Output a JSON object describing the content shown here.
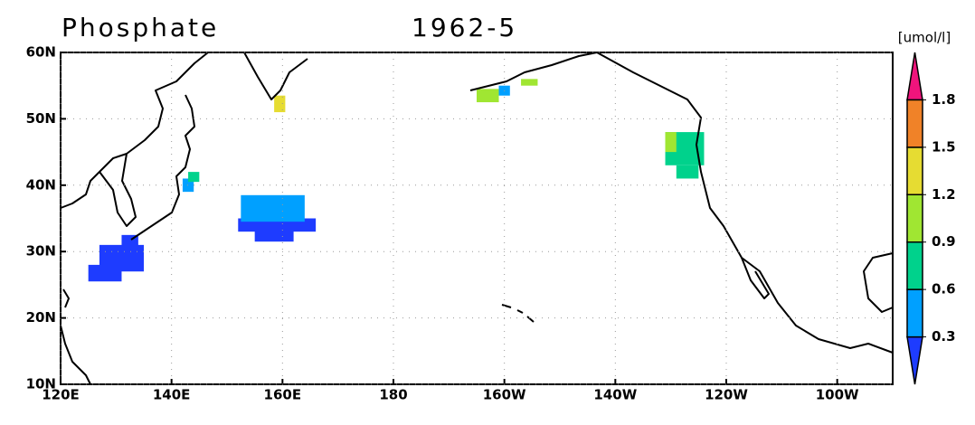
{
  "header": {
    "title": "Phosphate",
    "date": "1962-5"
  },
  "map": {
    "xlim": [
      120,
      270
    ],
    "ylim": [
      10,
      60
    ],
    "xticks": [
      {
        "value": 120,
        "label": "120E"
      },
      {
        "value": 140,
        "label": "140E"
      },
      {
        "value": 160,
        "label": "160E"
      },
      180,
      {
        "value": 200,
        "label": "160W"
      },
      {
        "value": 220,
        "label": "140W"
      },
      {
        "value": 240,
        "label": "120W"
      },
      {
        "value": 260,
        "label": "100W"
      }
    ],
    "yticks": [
      {
        "value": 10,
        "label": "10N"
      },
      {
        "value": 20,
        "label": "20N"
      },
      {
        "value": 30,
        "label": "30N"
      },
      {
        "value": 40,
        "label": "40N"
      },
      {
        "value": 50,
        "label": "50N"
      },
      {
        "value": 60,
        "label": "60N"
      }
    ],
    "grid": true,
    "patches": [
      {
        "lon": [
          125,
          131
        ],
        "lat": [
          25.5,
          28
        ],
        "value": 0.2
      },
      {
        "lon": [
          127,
          135
        ],
        "lat": [
          27,
          31
        ],
        "value": 0.2
      },
      {
        "lon": [
          131,
          134
        ],
        "lat": [
          30.5,
          32.5
        ],
        "value": 0.2
      },
      {
        "lon": [
          152,
          166
        ],
        "lat": [
          33,
          35
        ],
        "value": 0.2
      },
      {
        "lon": [
          155,
          162
        ],
        "lat": [
          31.5,
          33.5
        ],
        "value": 0.2
      },
      {
        "lon": [
          152.5,
          164
        ],
        "lat": [
          34.5,
          38.5
        ],
        "value": 0.45
      },
      {
        "lon": [
          142,
          144
        ],
        "lat": [
          39,
          41
        ],
        "value": 0.45
      },
      {
        "lon": [
          143,
          145
        ],
        "lat": [
          40.5,
          42
        ],
        "value": 0.75
      },
      {
        "lon": [
          158.5,
          160.5
        ],
        "lat": [
          51,
          53.5
        ],
        "value": 1.35
      },
      {
        "lon": [
          195,
          199
        ],
        "lat": [
          52.5,
          54.5
        ],
        "value": 1.05
      },
      {
        "lon": [
          199,
          201
        ],
        "lat": [
          53.5,
          55
        ],
        "value": 0.45
      },
      {
        "lon": [
          203,
          206
        ],
        "lat": [
          55,
          56
        ],
        "value": 1.05
      },
      {
        "lon": [
          229,
          236
        ],
        "lat": [
          43,
          48
        ],
        "value": 0.75
      },
      {
        "lon": [
          231,
          235
        ],
        "lat": [
          41,
          43
        ],
        "value": 0.75
      },
      {
        "lon": [
          229,
          231
        ],
        "lat": [
          45,
          48
        ],
        "value": 1.05
      }
    ]
  },
  "colorbar": {
    "unit": "[umol/l]",
    "levels": [
      0.3,
      0.6,
      0.9,
      1.2,
      1.5,
      1.8
    ],
    "colors": [
      "#1e3cff",
      "#00a0ff",
      "#00d28c",
      "#a0e632",
      "#e6dc32",
      "#f08228",
      "#f0147c"
    ]
  }
}
